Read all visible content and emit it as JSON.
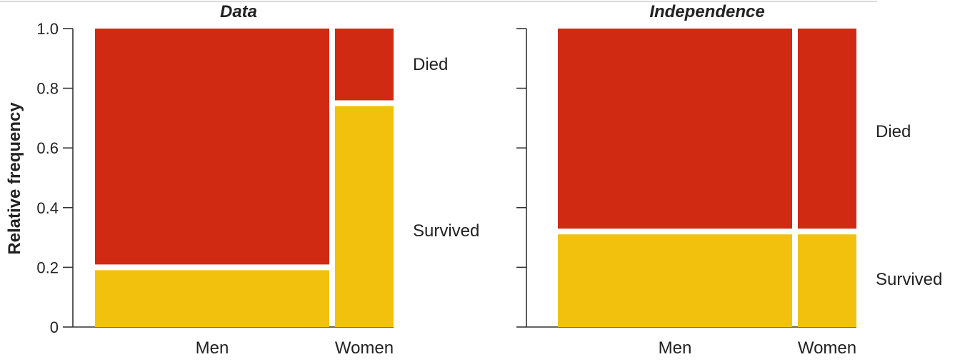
{
  "chart_data": [
    {
      "type": "mosaic",
      "title": "Data",
      "ylabel": "Relative frequency",
      "ylim": [
        0,
        1.0
      ],
      "yticks": [
        "0",
        "0.2",
        "0.4",
        "0.6",
        "0.8",
        "1.0"
      ],
      "categories": [
        "Men",
        "Women"
      ],
      "category_widths": [
        0.8,
        0.2
      ],
      "segments": [
        "Survived",
        "Died"
      ],
      "series": [
        {
          "name": "Survived",
          "values": [
            0.2,
            0.75
          ]
        },
        {
          "name": "Died",
          "values": [
            0.8,
            0.25
          ]
        }
      ],
      "colors": {
        "Survived": "#F2C10E",
        "Died": "#D02A12"
      }
    },
    {
      "type": "mosaic",
      "title": "Independence",
      "ylim": [
        0,
        1.0
      ],
      "categories": [
        "Men",
        "Women"
      ],
      "category_widths": [
        0.8,
        0.2
      ],
      "segments": [
        "Survived",
        "Died"
      ],
      "series": [
        {
          "name": "Survived",
          "values": [
            0.32,
            0.32
          ]
        },
        {
          "name": "Died",
          "values": [
            0.68,
            0.68
          ]
        }
      ],
      "colors": {
        "Survived": "#F2C10E",
        "Died": "#D02A12"
      }
    }
  ]
}
